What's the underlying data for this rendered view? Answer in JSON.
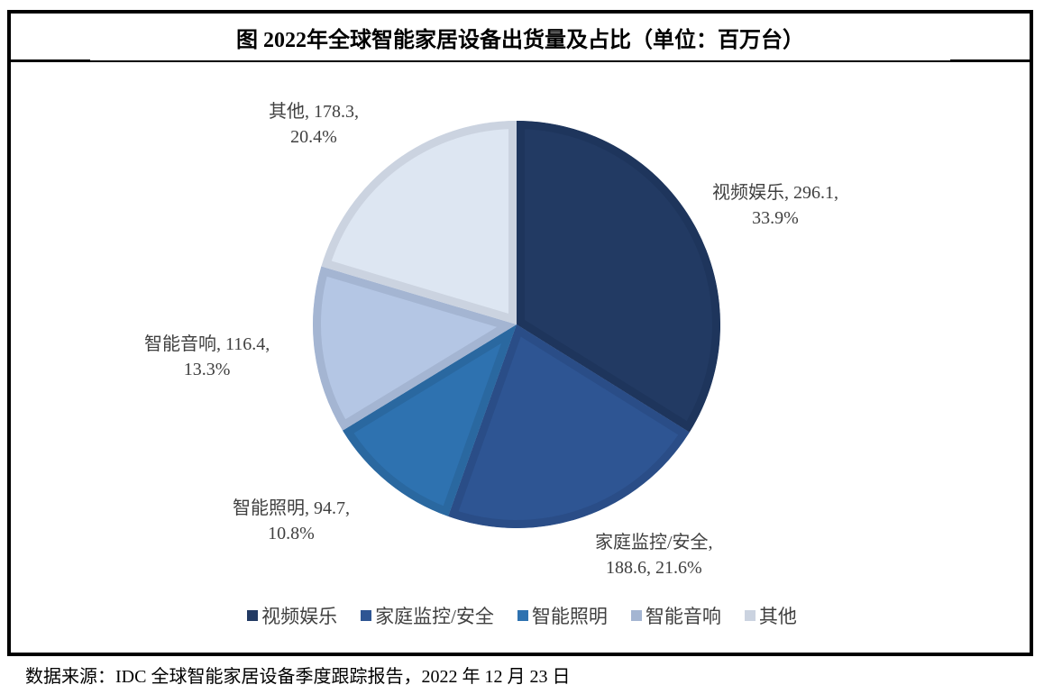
{
  "title": "图  2022年全球智能家居设备出货量及占比（单位：百万台）",
  "source": "数据来源：IDC 全球智能家居设备季度跟踪报告，2022 年 12 月 23 日",
  "chart_data": {
    "type": "pie",
    "title": "图 2022年全球智能家居设备出货量及占比（单位：百万台）",
    "unit": "百万台",
    "start_angle": "12 o'clock, clockwise",
    "legend_position": "bottom",
    "categories": [
      "视频娱乐",
      "家庭监控/安全",
      "智能照明",
      "智能音响",
      "其他"
    ],
    "values": [
      296.1,
      188.6,
      94.7,
      116.4,
      178.3
    ],
    "percentages": [
      33.9,
      21.6,
      10.8,
      13.3,
      20.4
    ],
    "colors": [
      "#223a63",
      "#2e5593",
      "#2e72b0",
      "#b4c6e4",
      "#dde6f2"
    ],
    "border_colors": [
      "#1e355c",
      "#2a4d87",
      "#2a68a0",
      "#a4b5d2",
      "#cbd3e0"
    ]
  },
  "labels": [
    {
      "line1": "视频娱乐, 296.1,",
      "line2": "33.9%"
    },
    {
      "line1": "家庭监控/安全,",
      "line2": "188.6, 21.6%"
    },
    {
      "line1": "智能照明, 94.7,",
      "line2": "10.8%"
    },
    {
      "line1": "智能音响, 116.4,",
      "line2": "13.3%"
    },
    {
      "line1": "其他, 178.3,",
      "line2": "20.4%"
    }
  ],
  "legend": [
    {
      "label": "视频娱乐",
      "color": "#223a63"
    },
    {
      "label": "家庭监控/安全",
      "color": "#2e5593"
    },
    {
      "label": "智能照明",
      "color": "#2e72b0"
    },
    {
      "label": "智能音响",
      "color": "#a4b5d2"
    },
    {
      "label": "其他",
      "color": "#cbd3e0"
    }
  ]
}
